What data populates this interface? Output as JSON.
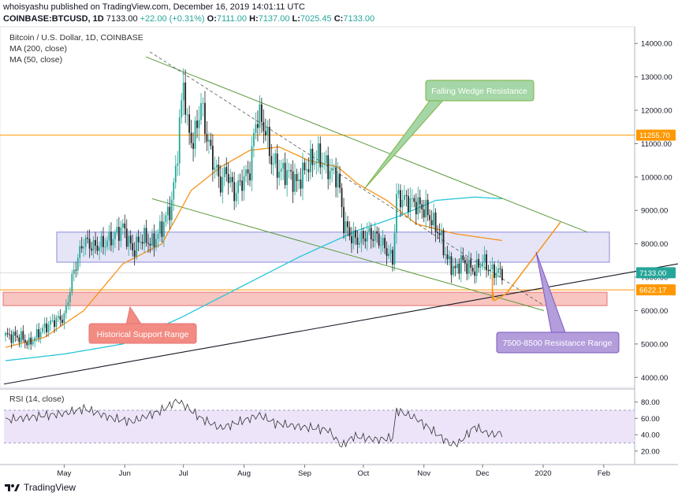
{
  "header": {
    "published_line": "whoisyashu published on TradingView.com, December 16, 2019 14:01:11 UTC",
    "symbol": "COINBASE:BTCUSD, 1D",
    "last": "7133.00",
    "change": "+22.00 (+0.31%)",
    "o_label": "O:",
    "o_value": "7111.00",
    "h_label": "H:",
    "h_value": "7137.00",
    "l_label": "L:",
    "l_value": "7025.45",
    "c_label": "C:",
    "c_value": "7133.00"
  },
  "legend": {
    "title": "Bitcoin / U.S. Dollar, 1D, COINBASE",
    "ma200": "MA (200, close)",
    "ma50": "MA (50, close)",
    "rsi": "RSI (14, close)"
  },
  "footer": {
    "brand": "TradingView"
  },
  "annotations": {
    "falling_wedge": "Falling Wedge Resistance",
    "historical_support": "Historical Support Range",
    "resistance_range": "7500-8500 Resistance Range"
  },
  "colors": {
    "up": "#26a69a",
    "down": "#222222",
    "ma200": "#26c6da",
    "ma50": "#f7931a",
    "level": "#ff9800",
    "wedge": "#5a9a3c",
    "support_box": "#f28b82",
    "resistance_box": "#b4b4e8",
    "rsi_band": "#e6d8f8",
    "callout_green": "#a5d6a7",
    "callout_purple": "#b39ddb",
    "callout_red": "#f28b82"
  },
  "chart_data": {
    "type": "candlestick",
    "title": "Bitcoin / U.S. Dollar, 1D, COINBASE",
    "ylim": [
      3700,
      14500
    ],
    "y_ticks": [
      4000,
      5000,
      6000,
      7000,
      8000,
      9000,
      10000,
      11000,
      12000,
      13000,
      14000
    ],
    "y_tick_labels": [
      "4000.00",
      "5000.00",
      "6000.00",
      "7000.00",
      "8000.00",
      "9000.00",
      "10000.00",
      "11000.00",
      "12000.00",
      "13000.00",
      "14000.00"
    ],
    "x_ticks": [
      "May",
      "Jun",
      "Jul",
      "Aug",
      "Sep",
      "Oct",
      "Nov",
      "Dec",
      "2020",
      "Feb"
    ],
    "x_tick_days": [
      30,
      61,
      91,
      122,
      153,
      183,
      214,
      244,
      275,
      306
    ],
    "x_start": "2019-04-01",
    "price_tags": [
      {
        "label": "11255.70",
        "value": 11255.7,
        "color": "#ff9800"
      },
      {
        "label": "7133.00",
        "value": 7133,
        "color": "#26a69a"
      },
      {
        "label": "6622.17",
        "value": 6622.17,
        "color": "#ff9800"
      }
    ],
    "close_anchors": [
      [
        0,
        5250
      ],
      [
        8,
        5200
      ],
      [
        12,
        5000
      ],
      [
        18,
        5400
      ],
      [
        25,
        5700
      ],
      [
        30,
        5800
      ],
      [
        35,
        7200
      ],
      [
        40,
        8100
      ],
      [
        45,
        7900
      ],
      [
        50,
        8000
      ],
      [
        55,
        8200
      ],
      [
        60,
        8500
      ],
      [
        65,
        7800
      ],
      [
        70,
        8200
      ],
      [
        75,
        8000
      ],
      [
        80,
        8500
      ],
      [
        85,
        9200
      ],
      [
        88,
        10800
      ],
      [
        91,
        12900
      ],
      [
        93,
        11500
      ],
      [
        96,
        11000
      ],
      [
        100,
        12200
      ],
      [
        103,
        11200
      ],
      [
        106,
        10500
      ],
      [
        110,
        9800
      ],
      [
        113,
        10200
      ],
      [
        117,
        9500
      ],
      [
        120,
        9800
      ],
      [
        125,
        10200
      ],
      [
        128,
        11700
      ],
      [
        130,
        11800
      ],
      [
        133,
        11400
      ],
      [
        136,
        10500
      ],
      [
        140,
        10200
      ],
      [
        145,
        10100
      ],
      [
        149,
        9800
      ],
      [
        155,
        10400
      ],
      [
        160,
        10600
      ],
      [
        166,
        10200
      ],
      [
        170,
        10000
      ],
      [
        173,
        8600
      ],
      [
        177,
        8200
      ],
      [
        181,
        8100
      ],
      [
        185,
        8300
      ],
      [
        190,
        8200
      ],
      [
        195,
        7800
      ],
      [
        198,
        7500
      ],
      [
        200,
        9400
      ],
      [
        205,
        9300
      ],
      [
        210,
        9200
      ],
      [
        215,
        9000
      ],
      [
        218,
        8700
      ],
      [
        222,
        8300
      ],
      [
        226,
        7500
      ],
      [
        230,
        7200
      ],
      [
        233,
        7500
      ],
      [
        237,
        7300
      ],
      [
        240,
        7200
      ],
      [
        244,
        7500
      ],
      [
        248,
        7200
      ],
      [
        254,
        7133
      ]
    ],
    "ma200_anchors": [
      [
        0,
        4500
      ],
      [
        30,
        4700
      ],
      [
        60,
        5000
      ],
      [
        90,
        5800
      ],
      [
        120,
        6700
      ],
      [
        150,
        7600
      ],
      [
        180,
        8400
      ],
      [
        200,
        8800
      ],
      [
        220,
        9300
      ],
      [
        240,
        9400
      ],
      [
        254,
        9350
      ]
    ],
    "ma50_anchors": [
      [
        0,
        4900
      ],
      [
        20,
        5200
      ],
      [
        40,
        6000
      ],
      [
        60,
        7400
      ],
      [
        80,
        8000
      ],
      [
        95,
        9600
      ],
      [
        110,
        10300
      ],
      [
        125,
        10800
      ],
      [
        140,
        10900
      ],
      [
        155,
        10500
      ],
      [
        170,
        10300
      ],
      [
        180,
        9800
      ],
      [
        195,
        9300
      ],
      [
        210,
        8600
      ],
      [
        230,
        8300
      ],
      [
        254,
        8100
      ]
    ],
    "resistance_range": [
      7450,
      8350
    ],
    "support_range": [
      6150,
      6550
    ],
    "level_11255": 11255.7,
    "level_6622": 6622.17,
    "rsi": {
      "ylim": [
        15,
        95
      ],
      "y_ticks": [
        20,
        40,
        60,
        80
      ],
      "y_tick_labels": [
        "20.00",
        "40.00",
        "60.00",
        "80.00"
      ],
      "band": [
        30,
        70
      ],
      "anchors": [
        [
          0,
          58
        ],
        [
          15,
          62
        ],
        [
          30,
          66
        ],
        [
          40,
          72
        ],
        [
          55,
          60
        ],
        [
          65,
          56
        ],
        [
          80,
          70
        ],
        [
          88,
          82
        ],
        [
          92,
          75
        ],
        [
          100,
          60
        ],
        [
          110,
          48
        ],
        [
          120,
          56
        ],
        [
          130,
          64
        ],
        [
          138,
          54
        ],
        [
          150,
          50
        ],
        [
          165,
          46
        ],
        [
          172,
          26
        ],
        [
          178,
          38
        ],
        [
          190,
          34
        ],
        [
          198,
          36
        ],
        [
          200,
          70
        ],
        [
          210,
          60
        ],
        [
          220,
          42
        ],
        [
          228,
          28
        ],
        [
          232,
          30
        ],
        [
          240,
          50
        ],
        [
          246,
          42
        ],
        [
          250,
          40
        ],
        [
          254,
          43
        ]
      ]
    }
  }
}
